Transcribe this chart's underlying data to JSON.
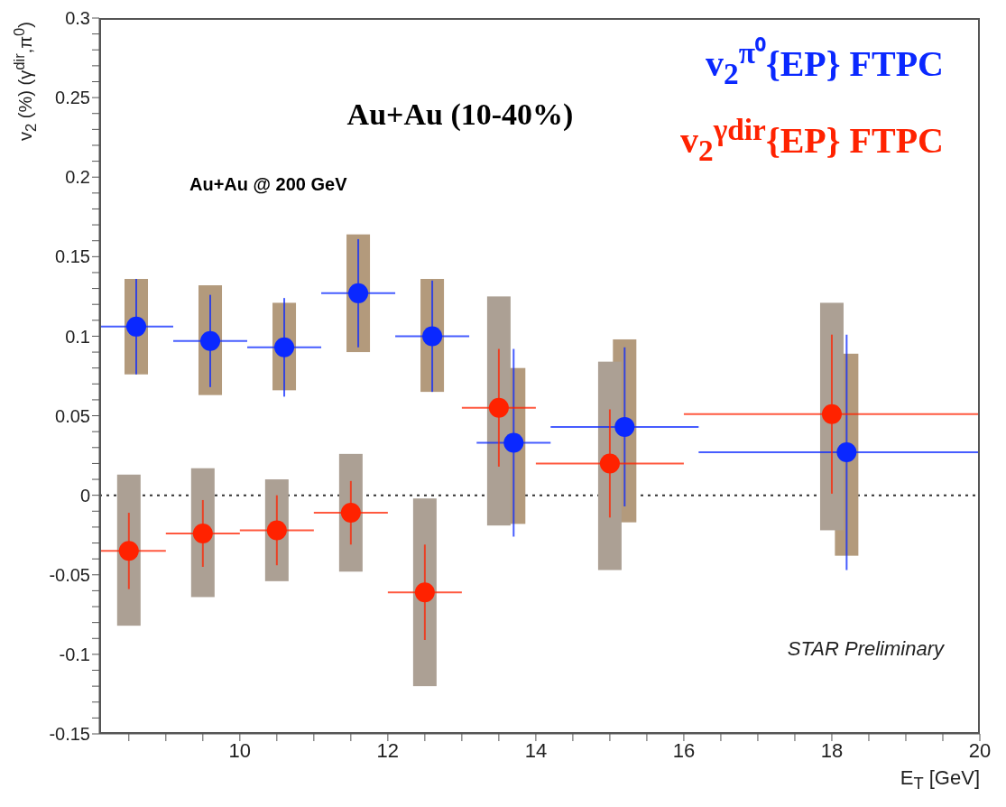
{
  "chart_data": {
    "type": "scatter",
    "xlabel": "E$_{T}$ [GeV]",
    "ylabel": "v$_{2}$ (%) (γ$^{dir}$,π$^{0}$)",
    "annotations": [
      "Au+Au (10-40%)",
      "Au+Au @ 200 GeV",
      "STAR Preliminary"
    ],
    "xlim": [
      8.1,
      20
    ],
    "ylim": [
      -0.15,
      0.3
    ],
    "xticks": [
      {
        "value": 8.5,
        "label": null
      },
      {
        "value": 9,
        "label": null
      },
      {
        "value": 9.5,
        "label": null
      },
      10,
      {
        "value": 10.5,
        "label": null
      },
      {
        "value": 11,
        "label": null
      },
      {
        "value": 11.5,
        "label": null
      },
      12,
      {
        "value": 12.5,
        "label": null
      },
      {
        "value": 13,
        "label": null
      },
      {
        "value": 13.5,
        "label": null
      },
      14,
      {
        "value": 14.5,
        "label": null
      },
      {
        "value": 15,
        "label": null
      },
      {
        "value": 15.5,
        "label": null
      },
      16,
      {
        "value": 16.5,
        "label": null
      },
      {
        "value": 17,
        "label": null
      },
      {
        "value": 17.5,
        "label": null
      },
      18,
      {
        "value": 18.5,
        "label": null
      },
      {
        "value": 19,
        "label": null
      },
      {
        "value": 19.5,
        "label": null
      },
      20
    ],
    "yticks": [
      -0.15,
      {
        "value": -0.14,
        "label": null
      },
      {
        "value": -0.13,
        "label": null
      },
      {
        "value": -0.12,
        "label": null
      },
      {
        "value": -0.11,
        "label": null
      },
      -0.1,
      {
        "value": -0.09,
        "label": null
      },
      {
        "value": -0.08,
        "label": null
      },
      {
        "value": -0.07,
        "label": null
      },
      {
        "value": -0.06,
        "label": null
      },
      -0.05,
      {
        "value": -0.04,
        "label": null
      },
      {
        "value": -0.03,
        "label": null
      },
      {
        "value": -0.02,
        "label": null
      },
      {
        "value": -0.01,
        "label": null
      },
      0,
      {
        "value": 0.01,
        "label": null
      },
      {
        "value": 0.02,
        "label": null
      },
      {
        "value": 0.03,
        "label": null
      },
      {
        "value": 0.04,
        "label": null
      },
      0.05,
      {
        "value": 0.06,
        "label": null
      },
      {
        "value": 0.07,
        "label": null
      },
      {
        "value": 0.08,
        "label": null
      },
      {
        "value": 0.09,
        "label": null
      },
      0.1,
      {
        "value": 0.11,
        "label": null
      },
      {
        "value": 0.12,
        "label": null
      },
      {
        "value": 0.13,
        "label": null
      },
      {
        "value": 0.14,
        "label": null
      },
      0.15,
      {
        "value": 0.16,
        "label": null
      },
      {
        "value": 0.17,
        "label": null
      },
      {
        "value": 0.18,
        "label": null
      },
      {
        "value": 0.19,
        "label": null
      },
      0.2,
      {
        "value": 0.21,
        "label": null
      },
      {
        "value": 0.22,
        "label": null
      },
      {
        "value": 0.23,
        "label": null
      },
      {
        "value": 0.24,
        "label": null
      },
      0.25,
      {
        "value": 0.26,
        "label": null
      },
      {
        "value": 0.27,
        "label": null
      },
      {
        "value": 0.28,
        "label": null
      },
      {
        "value": 0.29,
        "label": null
      },
      0.3
    ],
    "marker": "circle",
    "legend": "top right",
    "ref_lines": [
      {
        "axis": "y",
        "value": 0,
        "color": "#333333",
        "line_style": "dotted"
      }
    ],
    "series": [
      {
        "type": "bar",
        "color": "#b39a7c",
        "x": [
          8.6,
          9.6,
          10.6,
          11.6,
          12.6,
          13.7,
          15.2,
          18.2
        ],
        "base": [
          0.076,
          0.063,
          0.066,
          0.09,
          0.065,
          -0.018,
          -0.017,
          -0.038
        ],
        "values": [
          0.06,
          0.069,
          0.055,
          0.074,
          0.071,
          0.098,
          0.115,
          0.127
        ]
      },
      {
        "type": "bar",
        "color": "#aca094",
        "x": [
          8.5,
          9.5,
          10.5,
          11.5,
          12.5,
          13.5,
          15.0,
          18.0
        ],
        "base": [
          -0.082,
          -0.064,
          -0.054,
          -0.048,
          -0.12,
          -0.019,
          -0.047,
          -0.022
        ],
        "values": [
          0.095,
          0.081,
          0.064,
          0.074,
          0.118,
          0.144,
          0.131,
          0.143
        ]
      },
      {
        "type": "scatter",
        "name": "v$_{2}$$^{π⁰}${EP} FTPC",
        "color": "#0a28ff",
        "x": [
          8.6,
          9.6,
          10.6,
          11.6,
          12.6,
          13.7,
          15.2,
          18.2
        ],
        "values": [
          0.106,
          0.097,
          0.093,
          0.127,
          0.1,
          0.033,
          0.043,
          0.027
        ],
        "errors": [
          0.03,
          0.029,
          0.031,
          0.034,
          0.035,
          0.059,
          0.05,
          0.074
        ],
        "xerrors": [
          0.5,
          0.5,
          0.5,
          0.5,
          0.5,
          0.5,
          1,
          [
            16.2,
            20
          ]
        ]
      },
      {
        "type": "scatter",
        "name": "v$_{2}$$^{γdir}${EP} FTPC",
        "color": "#ff2200",
        "x": [
          8.5,
          9.5,
          10.5,
          11.5,
          12.5,
          13.5,
          15.0,
          18.0
        ],
        "values": [
          -0.035,
          -0.024,
          -0.022,
          -0.011,
          -0.061,
          0.055,
          0.02,
          0.051
        ],
        "errors": [
          0.024,
          0.021,
          0.022,
          0.02,
          0.03,
          0.037,
          0.034,
          0.05
        ],
        "xerrors": [
          [
            8.1,
            9.0
          ],
          0.5,
          0.5,
          0.5,
          0.5,
          0.5,
          1,
          2
        ]
      }
    ]
  }
}
